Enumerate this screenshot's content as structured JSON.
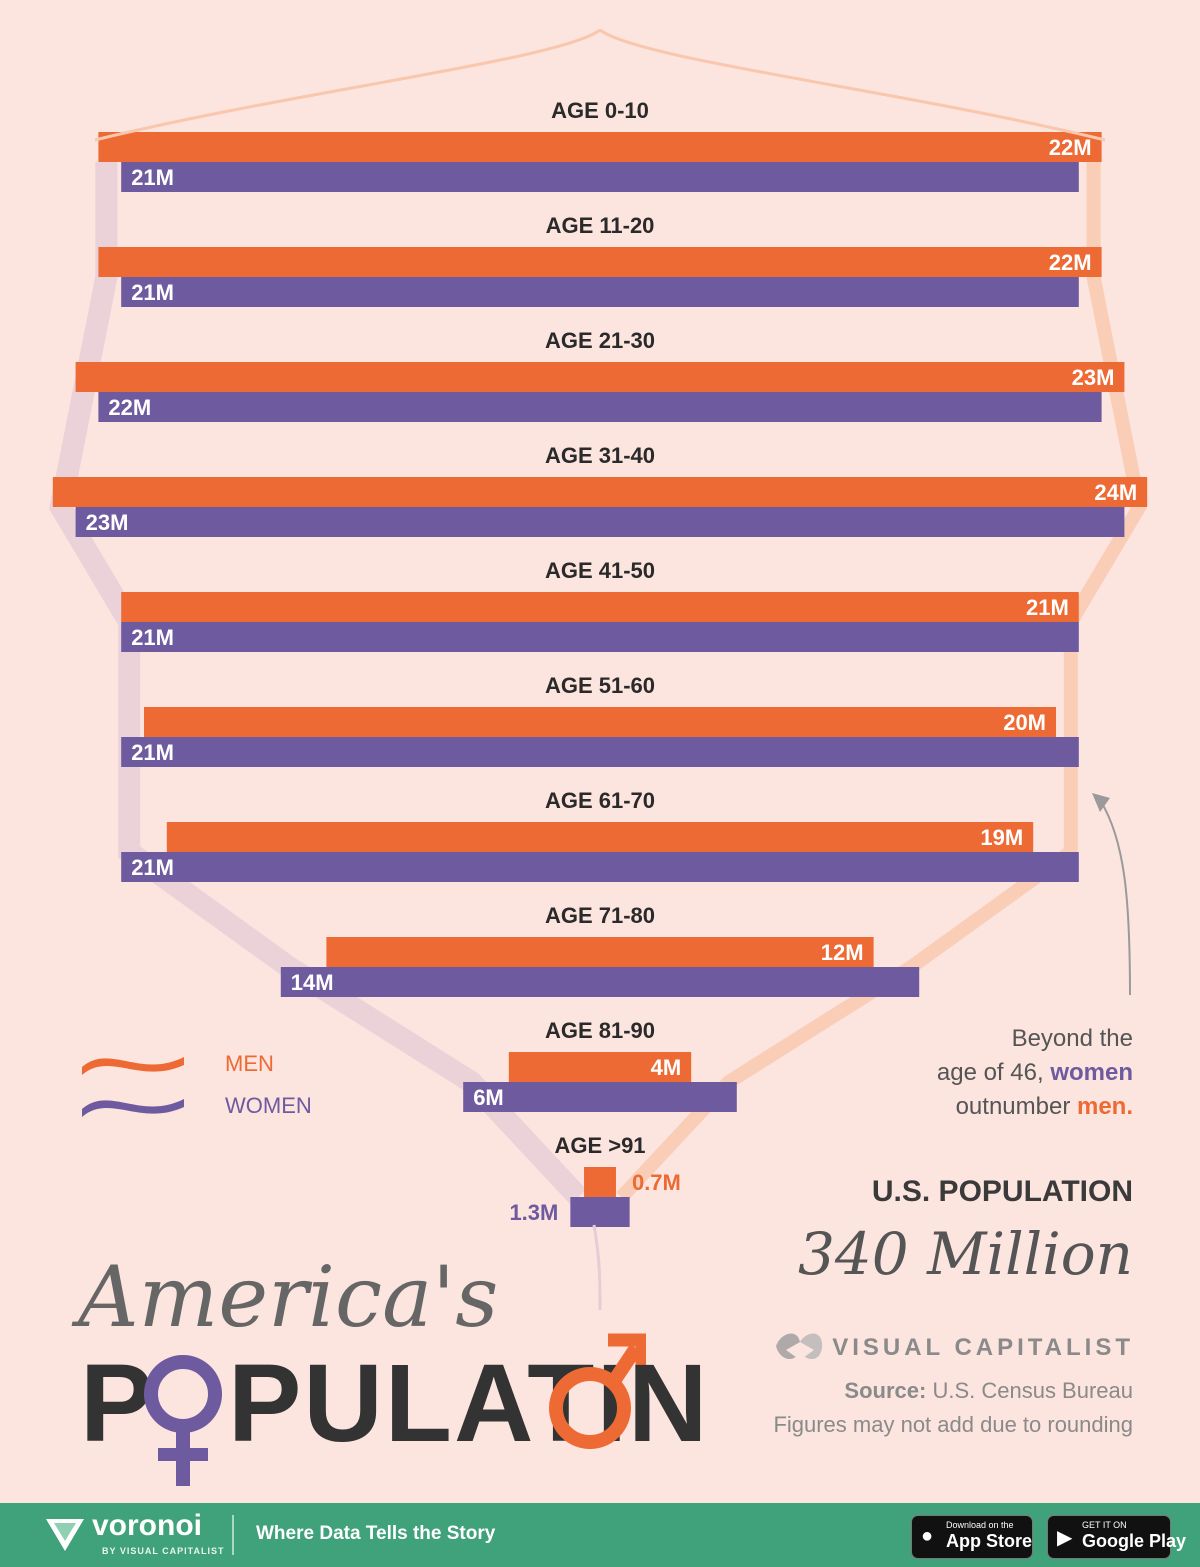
{
  "chart_data": {
    "type": "bar",
    "title": "America's Population",
    "subtitle": "U.S. POPULATION 340 Million",
    "categories": [
      "AGE 0-10",
      "AGE 11-20",
      "AGE 21-30",
      "AGE 31-40",
      "AGE 41-50",
      "AGE 51-60",
      "AGE 61-70",
      "AGE 71-80",
      "AGE 81-90",
      "AGE >91"
    ],
    "series": [
      {
        "name": "MEN",
        "values": [
          22,
          22,
          23,
          24,
          21,
          20,
          19,
          12,
          4,
          0.7
        ],
        "labels": [
          "22M",
          "22M",
          "23M",
          "24M",
          "21M",
          "20M",
          "19M",
          "12M",
          "4M",
          "0.7M"
        ]
      },
      {
        "name": "WOMEN",
        "values": [
          21,
          21,
          22,
          23,
          21,
          21,
          21,
          14,
          6,
          1.3
        ],
        "labels": [
          "21M",
          "21M",
          "22M",
          "23M",
          "21M",
          "21M",
          "21M",
          "14M",
          "6M",
          "1.3M"
        ]
      }
    ],
    "unit": "Million",
    "legend": "bottom-left",
    "grid": false
  },
  "colors": {
    "men": "#ee6a35",
    "women": "#6e5a9f",
    "background": "#fce4df",
    "footer": "#3fa27b"
  },
  "legend": {
    "men": "MEN",
    "women": "WOMEN"
  },
  "annotation": {
    "line1": "Beyond the",
    "line2_pre": "age of 46, ",
    "line2_women": "women",
    "line3_pre": "outnumber ",
    "line3_men": "men."
  },
  "population": {
    "title": "U.S. POPULATION",
    "value": "340 Million"
  },
  "title": {
    "line1": "America's",
    "line2_a": "P",
    "line2_b": "PULATI",
    "line2_c": "N"
  },
  "brand": {
    "name": "VISUAL CAPITALIST"
  },
  "source": {
    "label": "Source:",
    "text": "U.S. Census Bureau",
    "note": "Figures may not add due to rounding"
  },
  "footer": {
    "brand": "voronoi",
    "brand_sub": "BY VISUAL CAPITALIST",
    "tagline": "Where Data Tells the Story",
    "appstore_small": "Download on the",
    "appstore_big": "App Store",
    "googleplay_small": "GET IT ON",
    "googleplay_big": "Google Play"
  }
}
